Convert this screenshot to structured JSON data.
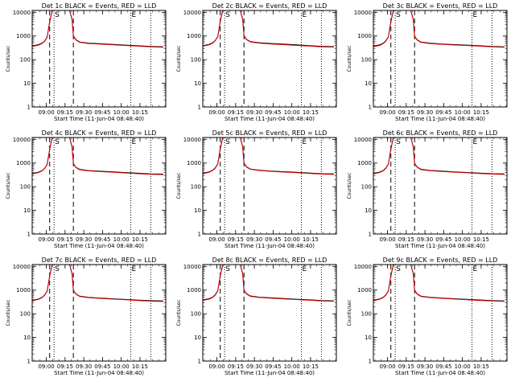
{
  "figure": {
    "common": {
      "ylabel": "Counts/sec",
      "xlabel": "Start Time (11-Jun-04 08:48:40)",
      "x_tick_labels": [
        "09:00",
        "09:15",
        "09:30",
        "09:45",
        "10:00",
        "10:15"
      ],
      "y_tick_labels": [
        "1",
        "10",
        "100",
        "1000",
        "10000"
      ],
      "marker_s": "S",
      "marker_e": "E"
    }
  },
  "chart_data": {
    "type": "line",
    "y_scale": "log",
    "ylim": [
      1,
      12000
    ],
    "x_range_minutes": [
      0,
      107
    ],
    "x_ticks_minutes": [
      11.33,
      26.33,
      41.33,
      56.33,
      71.33,
      86.33
    ],
    "dashed_markers_minutes": [
      14,
      33
    ],
    "dotted_markers_minutes": [
      17.5,
      79,
      95
    ],
    "series_colors": {
      "events": "#000000",
      "lld": "#dd0000"
    },
    "profile_minutes": [
      0,
      5,
      8,
      10,
      12,
      14,
      16,
      30,
      32,
      33,
      35,
      38,
      45,
      55,
      65,
      75,
      85,
      95,
      105
    ],
    "panels": [
      {
        "title": "Det 1c BLACK = Events, RED = LLD",
        "events": [
          380,
          430,
          500,
          620,
          900,
          4000,
          12000,
          12000,
          5000,
          1000,
          700,
          560,
          500,
          470,
          440,
          410,
          385,
          360,
          350
        ],
        "lld": [
          360,
          410,
          480,
          600,
          880,
          3800,
          12000,
          12000,
          4800,
          960,
          680,
          540,
          480,
          450,
          420,
          395,
          370,
          345,
          335
        ]
      },
      {
        "title": "Det 2c BLACK = Events, RED = LLD",
        "events": [
          390,
          440,
          520,
          650,
          950,
          4200,
          12000,
          12000,
          5200,
          1050,
          720,
          580,
          520,
          480,
          450,
          420,
          390,
          365,
          355
        ],
        "lld": [
          370,
          420,
          500,
          630,
          920,
          4000,
          12000,
          12000,
          5000,
          1000,
          700,
          560,
          500,
          460,
          430,
          400,
          375,
          350,
          340
        ]
      },
      {
        "title": "Det 3c BLACK = Events, RED = LLD",
        "events": [
          370,
          420,
          500,
          630,
          920,
          4000,
          12000,
          12000,
          5000,
          1000,
          700,
          560,
          500,
          460,
          430,
          410,
          385,
          360,
          350
        ],
        "lld": [
          355,
          400,
          480,
          610,
          900,
          3800,
          12000,
          12000,
          4800,
          980,
          680,
          540,
          480,
          445,
          415,
          395,
          370,
          345,
          335
        ]
      },
      {
        "title": "Det 4c BLACK = Events, RED = LLD",
        "events": [
          360,
          410,
          480,
          600,
          880,
          3800,
          12000,
          12000,
          4800,
          950,
          660,
          540,
          480,
          450,
          420,
          395,
          370,
          350,
          340
        ],
        "lld": [
          345,
          395,
          465,
          585,
          860,
          3600,
          12000,
          12000,
          4600,
          920,
          640,
          520,
          465,
          435,
          405,
          380,
          355,
          335,
          325
        ]
      },
      {
        "title": "Det 5c BLACK = Events, RED = LLD",
        "events": [
          370,
          420,
          500,
          630,
          920,
          4000,
          12000,
          12000,
          5000,
          1000,
          700,
          560,
          500,
          460,
          430,
          405,
          380,
          355,
          345
        ],
        "lld": [
          355,
          405,
          485,
          615,
          900,
          3800,
          12000,
          12000,
          4800,
          970,
          680,
          545,
          485,
          445,
          415,
          390,
          365,
          340,
          330
        ]
      },
      {
        "title": "Det 6c BLACK = Events, RED = LLD",
        "events": [
          360,
          415,
          490,
          620,
          900,
          3900,
          12000,
          12000,
          4900,
          980,
          690,
          550,
          490,
          455,
          425,
          400,
          375,
          355,
          345
        ],
        "lld": [
          345,
          400,
          475,
          600,
          880,
          3700,
          12000,
          12000,
          4700,
          950,
          670,
          530,
          475,
          440,
          410,
          385,
          360,
          340,
          330
        ]
      },
      {
        "title": "Det 7c BLACK = Events, RED = LLD",
        "events": [
          365,
          420,
          495,
          625,
          910,
          3950,
          12000,
          12000,
          4950,
          990,
          695,
          555,
          495,
          458,
          428,
          402,
          378,
          356,
          346
        ],
        "lld": [
          350,
          405,
          480,
          605,
          890,
          3750,
          12000,
          12000,
          4750,
          960,
          675,
          535,
          480,
          443,
          413,
          388,
          363,
          341,
          331
        ]
      },
      {
        "title": "Det 8c BLACK = Events, RED = LLD",
        "events": [
          380,
          430,
          505,
          640,
          930,
          4050,
          12000,
          12000,
          5050,
          1010,
          705,
          565,
          505,
          468,
          438,
          412,
          388,
          364,
          352
        ],
        "lld": [
          365,
          415,
          490,
          620,
          910,
          3850,
          12000,
          12000,
          4850,
          980,
          685,
          545,
          490,
          453,
          423,
          397,
          373,
          349,
          337
        ]
      },
      {
        "title": "Det 9c BLACK = Events, RED = LLD",
        "events": [
          370,
          425,
          500,
          630,
          920,
          4000,
          12000,
          12000,
          5000,
          1000,
          700,
          560,
          500,
          462,
          432,
          406,
          382,
          360,
          348
        ],
        "lld": [
          355,
          410,
          485,
          610,
          900,
          3800,
          12000,
          12000,
          4800,
          970,
          680,
          540,
          485,
          447,
          417,
          391,
          367,
          345,
          333
        ]
      }
    ]
  }
}
